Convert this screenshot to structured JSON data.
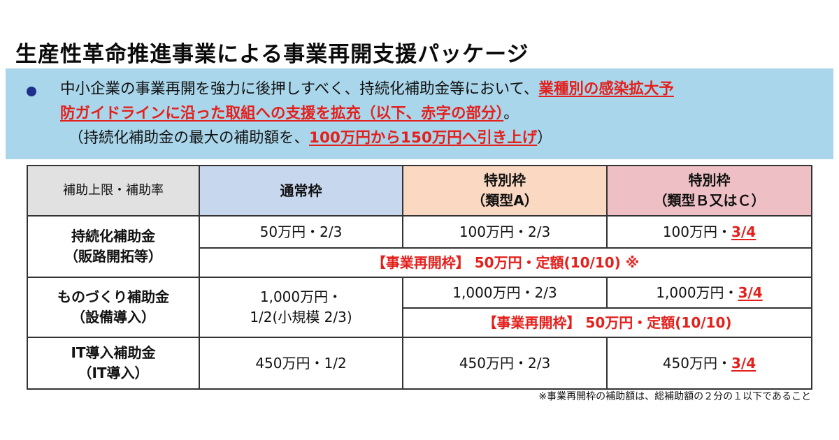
{
  "title": "生産性革命推進事業による事業再開支援パッケージ",
  "banner": {
    "line1_plain": "中小企業の事業再開を強力に後押しすべく、持続化補助金等において、",
    "line1_red": "業種別の感染拡大予",
    "line2_red": "防ガイドラインに沿った取組への支援を拡充（以下、赤字の部分）",
    "line2_plain": "。",
    "line3_open": "（持続化補助金の最大の補助額を、",
    "line3_red": "100万円から150万円へ引き上げ",
    "line3_close": "）"
  },
  "table": {
    "header": {
      "label": "補助上限・補助率",
      "col1": "通常枠",
      "col2_line1": "特別枠",
      "col2_line2": "（類型A）",
      "col3_line1": "特別枠",
      "col3_line2": "（類型Ｂ又はＣ）"
    },
    "rows": {
      "jizokuka": {
        "name_line1": "持続化補助金",
        "name_line2": "（販路開拓等）",
        "normal": "50万円・2/3",
        "special_a": "100万円・2/3",
        "special_bc_plain": "100万円・",
        "special_bc_red": "3/4",
        "restart": "【事業再開枠】 50万円・定額(10/10) ※"
      },
      "monozukuri": {
        "name_line1": "ものづくり補助金",
        "name_line2": "（設備導入）",
        "normal_line1": "1,000万円・",
        "normal_line2": "1/2(小規模 2/3)",
        "special_a": "1,000万円・2/3",
        "special_bc_plain": "1,000万円・",
        "special_bc_red": "3/4",
        "restart": "【事業再開枠】 50万円・定額(10/10)"
      },
      "it": {
        "name_line1": "IT導入補助金",
        "name_line2": "（IT導入）",
        "normal": "450万円・1/2",
        "special_a": "450万円・2/3",
        "special_bc_plain": "450万円・",
        "special_bc_red": "3/4"
      }
    }
  },
  "footnote": "※事業再開枠の補助額は、総補助額の２分の１以下であること",
  "colors": {
    "banner_bg": "#a9d6ea",
    "accent_red": "#e3201c",
    "header_blue": "#c7d7ee",
    "header_orange": "#fbd8c2",
    "header_pink": "#eec0c5",
    "header_gray": "#e1e1e1"
  }
}
